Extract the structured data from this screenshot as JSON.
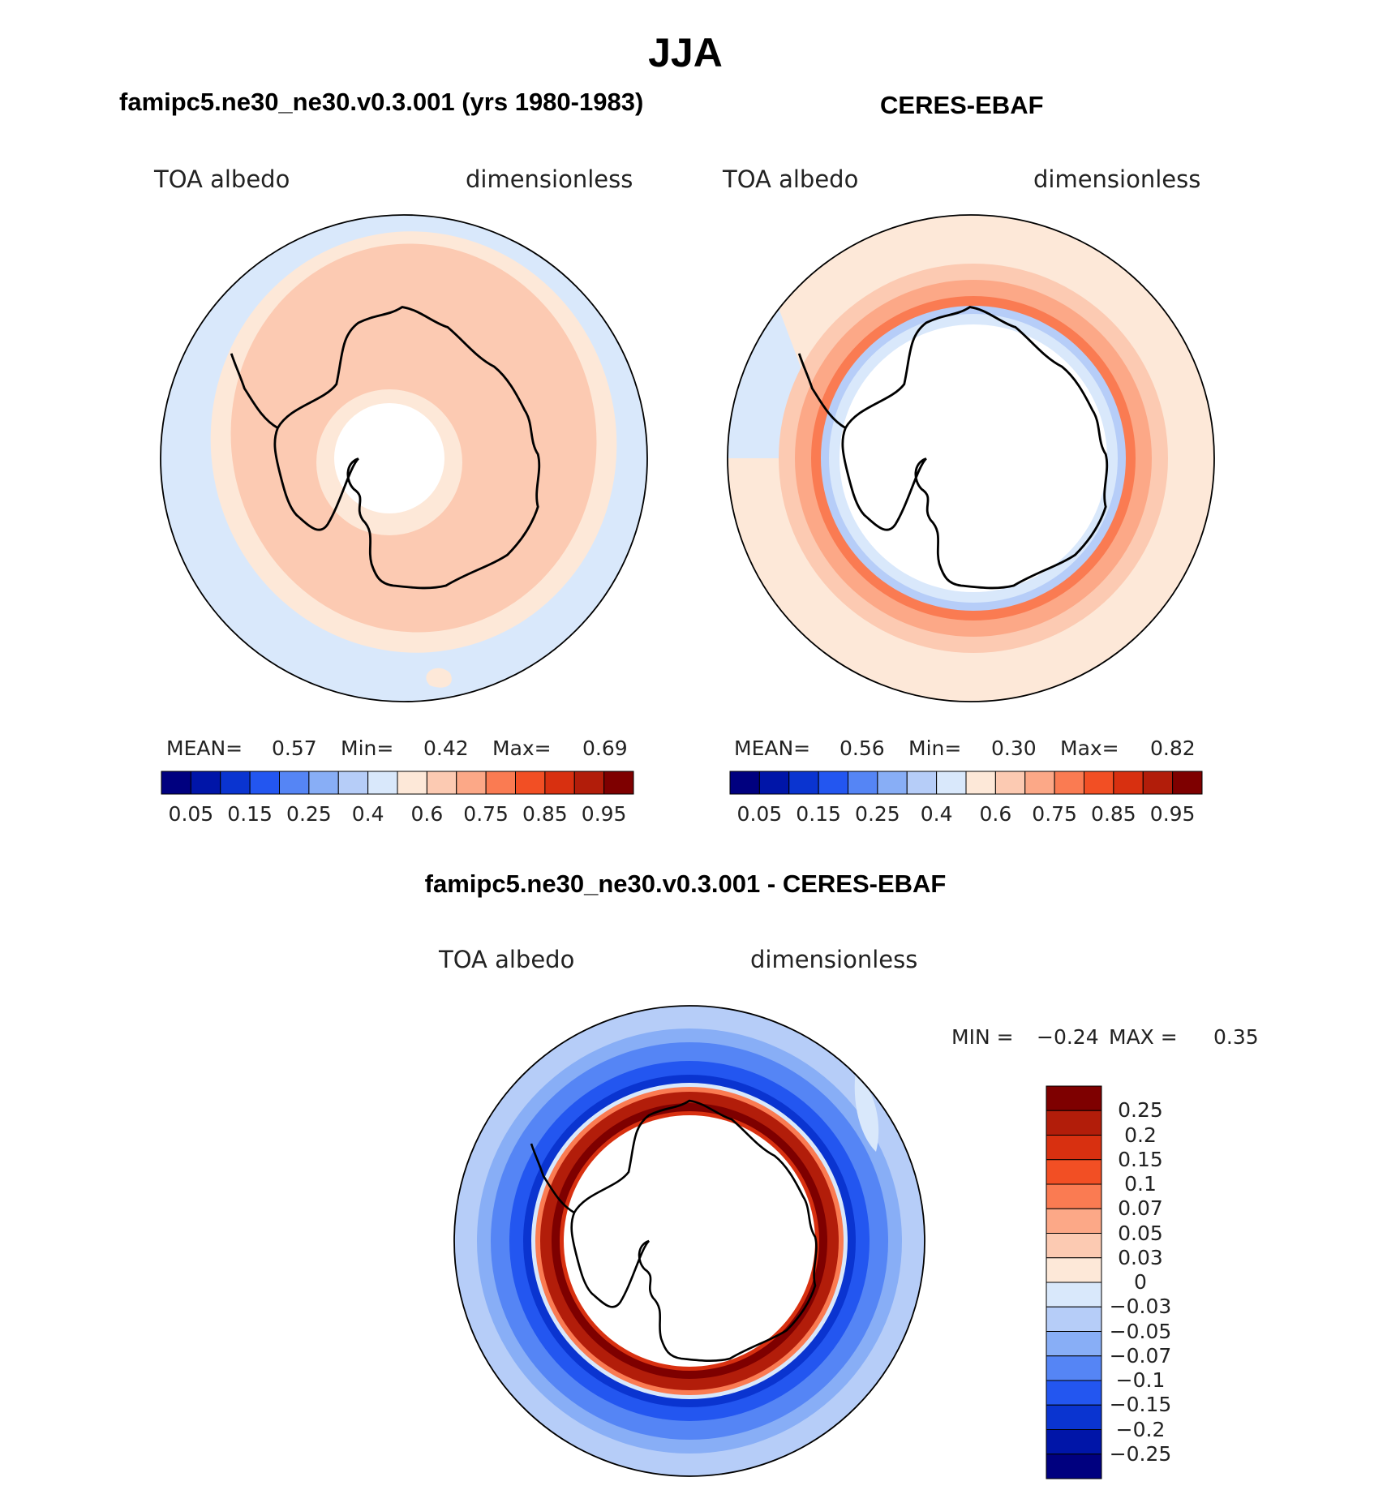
{
  "main_title": "JJA",
  "panels": {
    "model": {
      "title": "famipc5.ne30_ne30.v0.3.001 (yrs 1980-1983)",
      "variable": "TOA albedo",
      "units": "dimensionless",
      "stats": {
        "mean_label": "MEAN=",
        "mean": "0.57",
        "min_label": "Min=",
        "min": "0.42",
        "max_label": "Max=",
        "max": "0.69"
      }
    },
    "obs": {
      "title": "CERES-EBAF",
      "variable": "TOA albedo",
      "units": "dimensionless",
      "stats": {
        "mean_label": "MEAN=",
        "mean": "0.56",
        "min_label": "Min=",
        "min": "0.30",
        "max_label": "Max=",
        "max": "0.82"
      }
    },
    "diff": {
      "title": "famipc5.ne30_ne30.v0.3.001 - CERES-EBAF",
      "variable": "TOA albedo",
      "units": "dimensionless",
      "minmax": {
        "min_label": "MIN =",
        "min": "−0.24",
        "max_label": "MAX =",
        "max": "0.35"
      }
    }
  },
  "colorbar_abs": {
    "tick_labels": [
      "0.05",
      "0.15",
      "0.25",
      "0.4",
      "0.6",
      "0.75",
      "0.85",
      "0.95"
    ],
    "colors": [
      "#00007f",
      "#0015a8",
      "#0a34d0",
      "#2356f0",
      "#5585f5",
      "#88aef6",
      "#b6cdf8",
      "#d9e8fb",
      "#fde8d8",
      "#fccab2",
      "#fca887",
      "#fa7b52",
      "#f24f24",
      "#d83010",
      "#b21d0a",
      "#7e0000"
    ]
  },
  "colorbar_diff": {
    "tick_labels": [
      "0.25",
      "0.2",
      "0.15",
      "0.1",
      "0.07",
      "0.05",
      "0.03",
      "0",
      "−0.03",
      "−0.05",
      "−0.07",
      "−0.1",
      "−0.15",
      "−0.2",
      "−0.25"
    ],
    "colors": [
      "#7e0000",
      "#b21d0a",
      "#d83010",
      "#f24f24",
      "#fa7b52",
      "#fca887",
      "#fccab2",
      "#fde8d8",
      "#d9e8fb",
      "#b6cdf8",
      "#88aef6",
      "#5585f5",
      "#2356f0",
      "#0a34d0",
      "#0015a8",
      "#00007f"
    ]
  }
}
